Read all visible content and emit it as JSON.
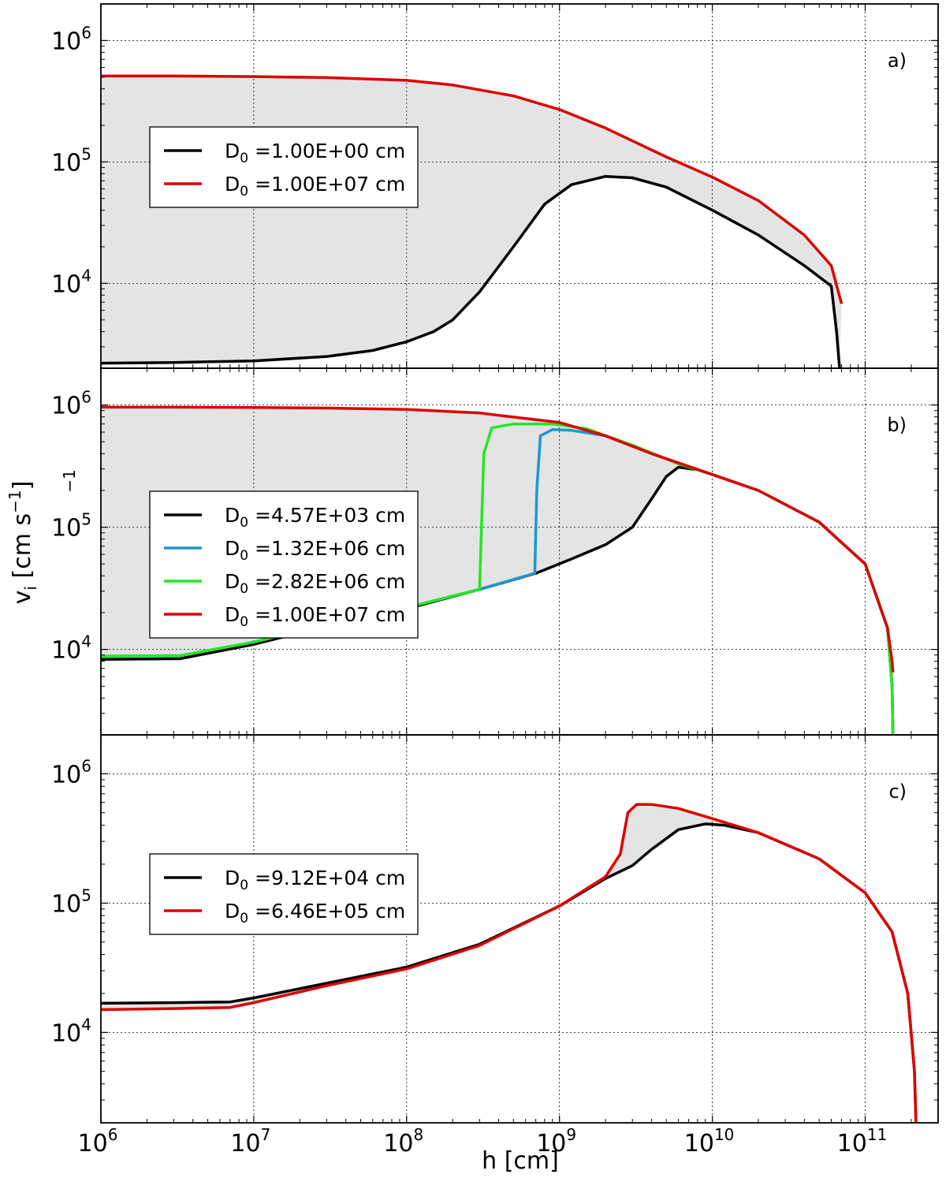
{
  "figure": {
    "xlabel": "h [cm]",
    "ylabel": "v",
    "ylabel_sub": "i",
    "ylabel_unit": "[cm s",
    "ylabel_exp": "−1",
    "ylabel_close": "]",
    "stray_exp": "−1"
  },
  "chart_data": [
    {
      "type": "line",
      "panel_label": "a)",
      "xscale": "log",
      "yscale": "log",
      "xlim": [
        1000000.0,
        300000000000.0
      ],
      "ylim": [
        2000,
        2000000
      ],
      "grid": true,
      "legend_position": "upper-left",
      "fill_between": true,
      "xticks": [
        {
          "base": "10",
          "exp": "6"
        },
        {
          "base": "10",
          "exp": "7"
        },
        {
          "base": "10",
          "exp": "8"
        },
        {
          "base": "10",
          "exp": "9"
        },
        {
          "base": "10",
          "exp": "10"
        },
        {
          "base": "10",
          "exp": "11"
        }
      ],
      "yticks": [
        {
          "base": "10",
          "exp": "4"
        },
        {
          "base": "10",
          "exp": "5"
        },
        {
          "base": "10",
          "exp": "6"
        }
      ],
      "series": [
        {
          "name": "D",
          "name_sub": "0",
          "name_rest": " =1.00E+00 cm",
          "color": "#000000",
          "x": [
            1000000.0,
            3000000.0,
            10000000.0,
            30000000.0,
            60000000.0,
            100000000.0,
            150000000.0,
            200000000.0,
            300000000.0,
            500000000.0,
            800000000.0,
            1200000000.0,
            2000000000.0,
            3000000000.0,
            5000000000.0,
            10000000000.0,
            20000000000.0,
            40000000000.0,
            60000000000.0,
            65000000000.0,
            68000000000.0
          ],
          "y": [
            2200,
            2230,
            2300,
            2500,
            2800,
            3300,
            4000,
            5000,
            8500,
            20000,
            45000,
            65000,
            76000,
            74000,
            62000,
            40000,
            25000,
            14000,
            9500,
            4000,
            2000
          ]
        },
        {
          "name": "D",
          "name_sub": "0",
          "name_rest": " =1.00E+07 cm",
          "color": "#dd0000",
          "x": [
            1000000.0,
            3000000.0,
            10000000.0,
            30000000.0,
            100000000.0,
            200000000.0,
            500000000.0,
            1000000000.0,
            2000000000.0,
            5000000000.0,
            10000000000.0,
            20000000000.0,
            40000000000.0,
            60000000000.0,
            70000000000.0
          ],
          "y": [
            510000,
            510000,
            505000,
            495000,
            470000,
            430000,
            350000,
            270000,
            190000,
            110000,
            75000,
            48000,
            25000,
            14000,
            6800
          ]
        }
      ]
    },
    {
      "type": "line",
      "panel_label": "b)",
      "xscale": "log",
      "yscale": "log",
      "xlim": [
        1000000.0,
        300000000000.0
      ],
      "ylim": [
        2000,
        2000000
      ],
      "grid": true,
      "legend_position": "upper-left",
      "fill_between": true,
      "xticks": [
        {
          "base": "10",
          "exp": "6"
        },
        {
          "base": "10",
          "exp": "7"
        },
        {
          "base": "10",
          "exp": "8"
        },
        {
          "base": "10",
          "exp": "9"
        },
        {
          "base": "10",
          "exp": "10"
        },
        {
          "base": "10",
          "exp": "11"
        }
      ],
      "yticks": [
        {
          "base": "10",
          "exp": "4"
        },
        {
          "base": "10",
          "exp": "5"
        },
        {
          "base": "10",
          "exp": "6"
        }
      ],
      "series": [
        {
          "name": "D",
          "name_sub": "0",
          "name_rest": " =4.57E+03 cm",
          "color": "#000000",
          "x": [
            1000000.0,
            3300000.0,
            10000000.0,
            30000000.0,
            100000000.0,
            300000000.0,
            700000000.0,
            1200000000.0,
            2000000000.0,
            3000000000.0,
            4000000000.0,
            5000000000.0,
            6000000000.0,
            8000000000.0,
            10000000000.0,
            20000000000.0,
            50000000000.0,
            100000000000.0,
            140000000000.0,
            150000000000.0,
            152000000000.0
          ],
          "y": [
            8300,
            8400,
            11000,
            15500,
            21500,
            31000,
            42000,
            55000,
            72000,
            100000,
            170000,
            260000,
            310000,
            295000,
            270000,
            200000,
            110000,
            50000,
            15000,
            5000,
            2000
          ]
        },
        {
          "name": "D",
          "name_sub": "0",
          "name_rest": " =1.32E+06 cm",
          "color": "#1e96d2",
          "x": [
            1000000.0,
            3300000.0,
            10000000.0,
            30000000.0,
            100000000.0,
            300000000.0,
            690000000.0,
            710000000.0,
            750000000.0,
            900000000.0,
            1200000000.0,
            2000000000.0,
            4000000000.0,
            10000000000.0,
            20000000000.0,
            50000000000.0,
            100000000000.0,
            140000000000.0,
            150000000000.0,
            152000000000.0
          ],
          "y": [
            8800,
            8900,
            11500,
            16000,
            22000,
            31000,
            42000,
            200000,
            560000,
            630000,
            620000,
            560000,
            400000,
            270000,
            200000,
            110000,
            50000,
            15000,
            5000,
            2000
          ]
        },
        {
          "name": "D",
          "name_sub": "0",
          "name_rest": " =2.82E+06 cm",
          "color": "#22e822",
          "x": [
            1000000.0,
            3300000.0,
            10000000.0,
            30000000.0,
            100000000.0,
            300000000.0,
            305000000.0,
            320000000.0,
            360000000.0,
            500000000.0,
            900000000.0,
            1500000000.0,
            3000000000.0,
            6000000000.0,
            10000000000.0,
            20000000000.0,
            50000000000.0,
            100000000000.0,
            140000000000.0,
            150000000000.0,
            152000000000.0
          ],
          "y": [
            8800,
            8900,
            11500,
            16000,
            22000,
            31000,
            60000,
            400000,
            650000,
            700000,
            700000,
            640000,
            470000,
            330000,
            270000,
            200000,
            110000,
            50000,
            15000,
            5000,
            2000
          ]
        },
        {
          "name": "D",
          "name_sub": "0",
          "name_rest": " =1.00E+07 cm",
          "color": "#dd0000",
          "x": [
            1000000.0,
            3000000.0,
            10000000.0,
            30000000.0,
            100000000.0,
            300000000.0,
            1000000000.0,
            2000000000.0,
            4000000000.0,
            10000000000.0,
            20000000000.0,
            50000000000.0,
            100000000000.0,
            140000000000.0,
            150000000000.0,
            152000000000.0
          ],
          "y": [
            960000,
            960000,
            955000,
            945000,
            920000,
            860000,
            720000,
            560000,
            400000,
            270000,
            200000,
            110000,
            50000,
            15000,
            8000,
            6500
          ]
        }
      ]
    },
    {
      "type": "line",
      "panel_label": "c)",
      "xscale": "log",
      "yscale": "log",
      "xlim": [
        1000000.0,
        300000000000.0
      ],
      "ylim": [
        2000,
        2000000
      ],
      "grid": true,
      "legend_position": "center-left",
      "fill_between": true,
      "xticks": [
        {
          "base": "10",
          "exp": "6"
        },
        {
          "base": "10",
          "exp": "7"
        },
        {
          "base": "10",
          "exp": "8"
        },
        {
          "base": "10",
          "exp": "9"
        },
        {
          "base": "10",
          "exp": "10"
        },
        {
          "base": "10",
          "exp": "11"
        }
      ],
      "yticks": [
        {
          "base": "10",
          "exp": "4"
        },
        {
          "base": "10",
          "exp": "5"
        },
        {
          "base": "10",
          "exp": "6"
        }
      ],
      "series": [
        {
          "name": "D",
          "name_sub": "0",
          "name_rest": " =9.12E+04 cm",
          "color": "#000000",
          "x": [
            1000000.0,
            3000000.0,
            7000000.0,
            10000000.0,
            30000000.0,
            100000000.0,
            300000000.0,
            1000000000.0,
            2000000000.0,
            3000000000.0,
            4000000000.0,
            6000000000.0,
            9000000000.0,
            12000000000.0,
            20000000000.0,
            50000000000.0,
            100000000000.0,
            150000000000.0,
            190000000000.0,
            210000000000.0,
            215000000000.0
          ],
          "y": [
            16800,
            17000,
            17200,
            18500,
            24000,
            32000,
            48000,
            95000,
            155000,
            195000,
            260000,
            370000,
            410000,
            400000,
            350000,
            220000,
            120000,
            60000,
            20000,
            5000,
            2000
          ]
        },
        {
          "name": "D",
          "name_sub": "0",
          "name_rest": " =6.46E+05 cm",
          "color": "#dd0000",
          "x": [
            1000000.0,
            3000000.0,
            7000000.0,
            10000000.0,
            30000000.0,
            100000000.0,
            300000000.0,
            1000000000.0,
            2000000000.0,
            2500000000.0,
            2800000000.0,
            3200000000.0,
            4000000000.0,
            6000000000.0,
            10000000000.0,
            20000000000.0,
            50000000000.0,
            100000000000.0,
            150000000000.0,
            190000000000.0,
            210000000000.0,
            215000000000.0
          ],
          "y": [
            15000,
            15300,
            15600,
            17000,
            23000,
            31000,
            47000,
            95000,
            160000,
            240000,
            500000,
            580000,
            580000,
            540000,
            450000,
            350000,
            220000,
            120000,
            60000,
            20000,
            5000,
            2000
          ]
        }
      ]
    }
  ]
}
